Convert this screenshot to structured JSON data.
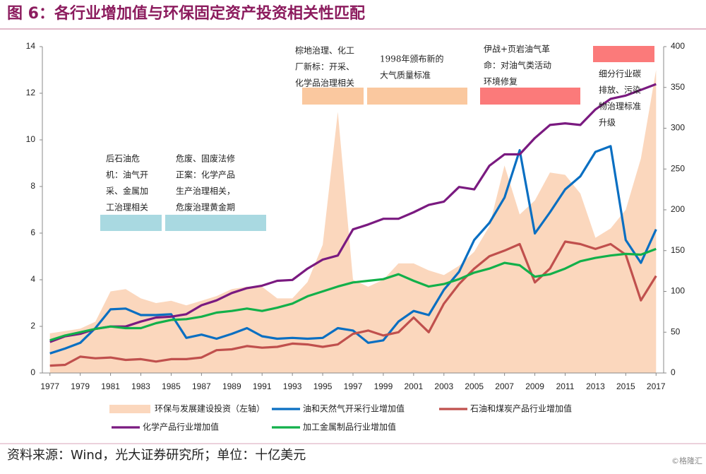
{
  "chart_data": {
    "type": "line",
    "title": "图 6：各行业增加值与环保固定资产投资相关性匹配",
    "source": "资料来源：Wind，光大证券研究所；单位：十亿美元",
    "watermark": "©格隆汇",
    "x": [
      1977,
      1978,
      1979,
      1980,
      1981,
      1982,
      1983,
      1984,
      1985,
      1986,
      1987,
      1988,
      1989,
      1990,
      1991,
      1992,
      1993,
      1994,
      1995,
      1996,
      1997,
      1998,
      1999,
      2000,
      2001,
      2002,
      2003,
      2004,
      2005,
      2006,
      2007,
      2008,
      2009,
      2010,
      2011,
      2012,
      2013,
      2014,
      2015,
      2016,
      2017
    ],
    "xlim": [
      1976.5,
      2017.5
    ],
    "xticks": [
      1977,
      1979,
      1981,
      1983,
      1985,
      1987,
      1989,
      1991,
      1993,
      1995,
      1997,
      1999,
      2001,
      2003,
      2005,
      2007,
      2009,
      2011,
      2013,
      2015,
      2017
    ],
    "ylim": [
      0,
      14
    ],
    "yticks": [
      0,
      2,
      4,
      6,
      8,
      10,
      12,
      14
    ],
    "y2lim": [
      0,
      400
    ],
    "y2ticks": [
      0,
      50,
      100,
      150,
      200,
      250,
      300,
      350,
      400
    ],
    "series": [
      {
        "name": "环保与发展建设投资（左轴）",
        "type": "area",
        "color": "#fbd7bd",
        "values": [
          1.7,
          1.8,
          1.9,
          2.2,
          3.5,
          3.6,
          3.2,
          3.0,
          3.1,
          2.9,
          3.1,
          3.3,
          3.6,
          3.7,
          3.7,
          3.2,
          3.2,
          3.9,
          5.5,
          11.2,
          4.0,
          3.7,
          4.0,
          4.7,
          4.7,
          4.4,
          4.2,
          4.6,
          5.2,
          6.3,
          8.9,
          6.8,
          7.4,
          8.6,
          8.5,
          7.7,
          5.8,
          6.2,
          7.0,
          9.2,
          13.0
        ]
      },
      {
        "name": "油和天然气开采行业增加值",
        "axis": "y2",
        "color": "#0a6fc2",
        "values": [
          24,
          30,
          37,
          55,
          78,
          79,
          71,
          71,
          72,
          43,
          47,
          42,
          48,
          55,
          45,
          42,
          43,
          42,
          43,
          55,
          52,
          37,
          40,
          63,
          76,
          71,
          102,
          124,
          163,
          184,
          215,
          273,
          171,
          197,
          225,
          241,
          271,
          278,
          163,
          135,
          176
        ]
      },
      {
        "name": "石油和煤炭产品行业增加值",
        "axis": "y2",
        "color": "#c0504d",
        "values": [
          9,
          10,
          20,
          18,
          19,
          16,
          17,
          14,
          17,
          17,
          19,
          28,
          29,
          33,
          31,
          32,
          36,
          35,
          32,
          35,
          48,
          52,
          46,
          50,
          68,
          50,
          85,
          109,
          128,
          143,
          150,
          158,
          111,
          128,
          161,
          158,
          152,
          158,
          145,
          89,
          119
        ]
      },
      {
        "name": "化学产品行业增加值",
        "axis": "y2",
        "color": "#7a1a80",
        "values": [
          38,
          45,
          48,
          54,
          57,
          57,
          63,
          68,
          69,
          72,
          83,
          89,
          98,
          104,
          107,
          113,
          114,
          128,
          139,
          144,
          176,
          182,
          189,
          189,
          197,
          206,
          210,
          228,
          225,
          254,
          268,
          268,
          288,
          304,
          306,
          304,
          323,
          336,
          340,
          347,
          354
        ]
      },
      {
        "name": "加工金属制品行业增加值",
        "axis": "y2",
        "color": "#12b04a",
        "values": [
          40,
          46,
          50,
          54,
          57,
          55,
          55,
          61,
          65,
          66,
          69,
          74,
          76,
          79,
          76,
          80,
          85,
          94,
          100,
          106,
          111,
          113,
          115,
          121,
          113,
          106,
          109,
          115,
          123,
          128,
          135,
          132,
          118,
          121,
          128,
          137,
          141,
          144,
          146,
          145,
          152
        ]
      }
    ],
    "annotations": [
      {
        "lines": [
          "后石油危",
          "机：油气开",
          "采、金属加",
          "工治理相关"
        ],
        "color": "#a9d9e1"
      },
      {
        "lines": [
          "危废、固废法修",
          "正案：化学产品",
          "生产治理相关，",
          "危废治理黄金期"
        ],
        "color": "#a9d9e1"
      },
      {
        "lines": [
          "棕地治理、化工",
          "厂新标：开采、",
          "化学品治理相关"
        ],
        "color": "#fac89f"
      },
      {
        "lines": [
          "1998年颁布新的",
          "大气质量标准"
        ],
        "color": "#fac89f"
      },
      {
        "lines": [
          "伊战+页岩油气革",
          "命：对油气类活动",
          "环境修复"
        ],
        "color": "#fb7a7a"
      },
      {
        "lines": [
          "细分行业碳",
          "排放、污染",
          "物治理标准",
          "升级"
        ],
        "color": "#fb7a7a"
      }
    ]
  }
}
